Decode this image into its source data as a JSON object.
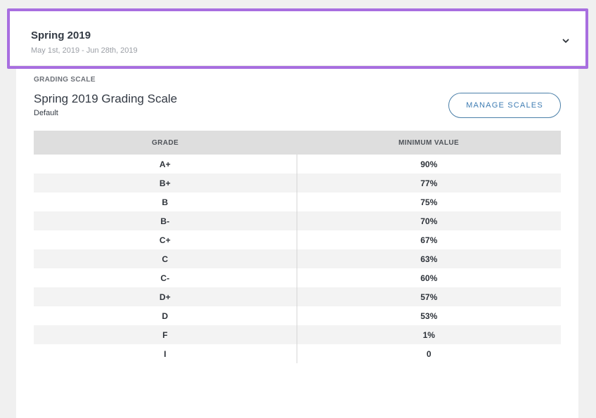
{
  "term": {
    "title": "Spring 2019",
    "dates": "May 1st, 2019 - Jun 28th, 2019",
    "chevron_icon": "chevron-down-icon",
    "highlight_color": "#a86ee0"
  },
  "grading": {
    "section_label": "GRADING SCALE",
    "scale_name": "Spring 2019 Grading Scale",
    "scale_type": "Default",
    "manage_button": "MANAGE SCALES"
  },
  "table": {
    "headers": {
      "grade": "GRADE",
      "minimum": "MINIMUM VALUE"
    },
    "rows": [
      {
        "grade": "A+",
        "minimum": "90%"
      },
      {
        "grade": "B+",
        "minimum": "77%"
      },
      {
        "grade": "B",
        "minimum": "75%"
      },
      {
        "grade": "B-",
        "minimum": "70%"
      },
      {
        "grade": "C+",
        "minimum": "67%"
      },
      {
        "grade": "C",
        "minimum": "63%"
      },
      {
        "grade": "C-",
        "minimum": "60%"
      },
      {
        "grade": "D+",
        "minimum": "57%"
      },
      {
        "grade": "D",
        "minimum": "53%"
      },
      {
        "grade": "F",
        "minimum": "1%"
      },
      {
        "grade": "I",
        "minimum": "0"
      }
    ]
  }
}
